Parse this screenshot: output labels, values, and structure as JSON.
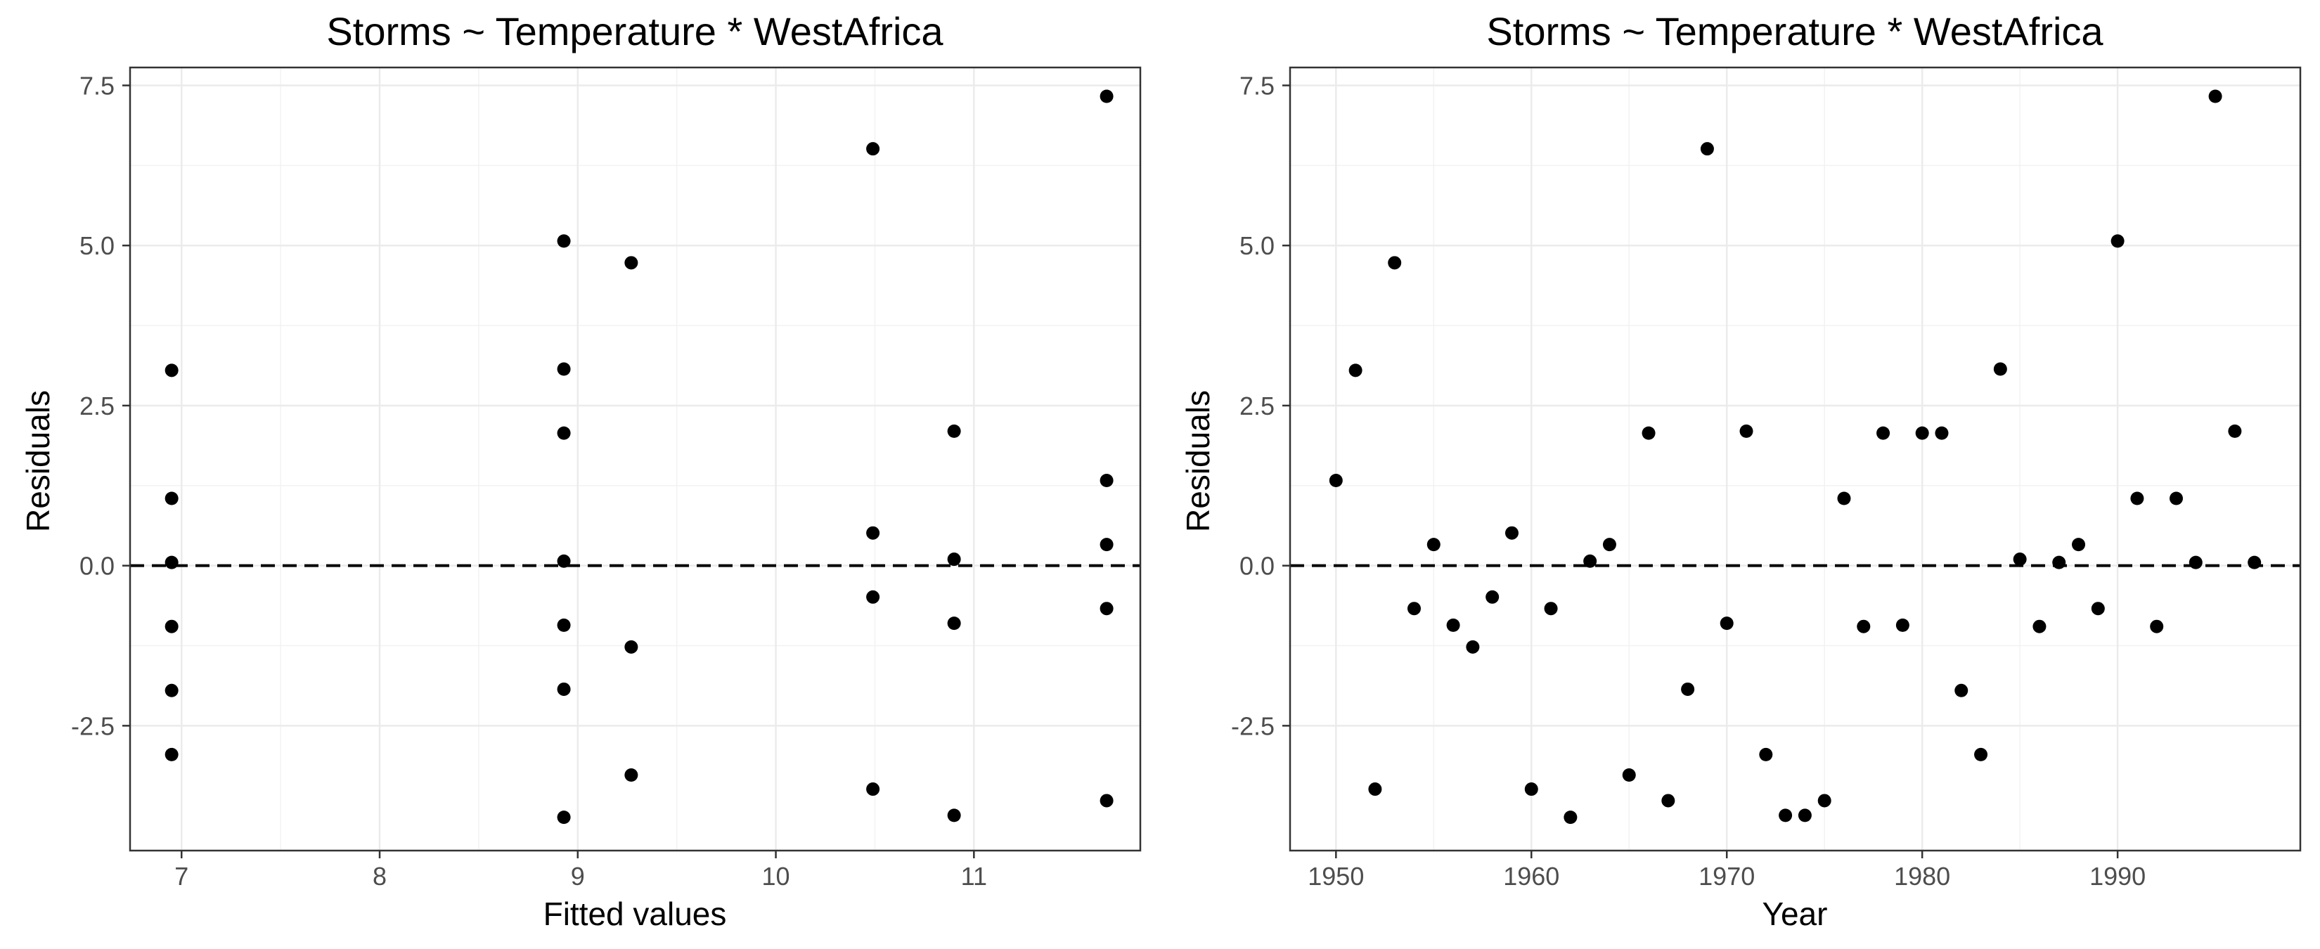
{
  "chart_data": [
    {
      "type": "scatter",
      "title": "Storms ~ Temperature * WestAfrica",
      "xlabel": "Fitted values",
      "ylabel": "Residuals",
      "xlim": [
        6.74,
        11.84
      ],
      "ylim": [
        -4.45,
        7.78
      ],
      "x_ticks": [
        7,
        8,
        9,
        10,
        11
      ],
      "x_tick_labels": [
        "7",
        "8",
        "9",
        "10",
        "11"
      ],
      "y_ticks": [
        -2.5,
        0,
        2.5,
        5,
        7.5
      ],
      "y_tick_labels": [
        "-2.5",
        "0.0",
        "2.5",
        "5.0",
        "7.5"
      ],
      "reference_line": 0,
      "grid": true,
      "x": [
        6.95,
        6.95,
        6.95,
        6.95,
        6.95,
        6.95,
        8.93,
        8.93,
        8.93,
        8.93,
        8.93,
        8.93,
        8.93,
        9.27,
        9.27,
        9.27,
        10.49,
        10.49,
        10.49,
        10.49,
        10.9,
        10.9,
        10.9,
        10.9,
        11.67,
        11.67,
        11.67,
        11.67,
        11.67
      ],
      "y": [
        3.05,
        1.05,
        0.05,
        -0.95,
        -1.95,
        -2.95,
        5.07,
        3.07,
        2.07,
        0.07,
        -0.93,
        -1.93,
        -3.93,
        4.73,
        -1.27,
        -3.27,
        6.51,
        0.51,
        -0.49,
        -3.49,
        2.1,
        0.1,
        -0.9,
        -3.9,
        7.33,
        1.33,
        0.33,
        -0.67,
        -3.67
      ]
    },
    {
      "type": "scatter",
      "title": "Storms ~ Temperature * WestAfrica",
      "xlabel": "Year",
      "ylabel": "Residuals",
      "xlim": [
        1947.65,
        1999.35
      ],
      "ylim": [
        -4.45,
        7.78
      ],
      "x_ticks": [
        1950,
        1960,
        1970,
        1980,
        1990
      ],
      "x_tick_labels": [
        "1950",
        "1960",
        "1970",
        "1980",
        "1990"
      ],
      "y_ticks": [
        -2.5,
        0,
        2.5,
        5,
        7.5
      ],
      "y_tick_labels": [
        "-2.5",
        "0.0",
        "2.5",
        "5.0",
        "7.5"
      ],
      "reference_line": 0,
      "grid": true,
      "x": [
        1950,
        1951,
        1952,
        1953,
        1954,
        1955,
        1956,
        1957,
        1958,
        1959,
        1960,
        1961,
        1962,
        1963,
        1964,
        1965,
        1966,
        1967,
        1968,
        1969,
        1970,
        1971,
        1972,
        1973,
        1974,
        1975,
        1976,
        1977,
        1978,
        1979,
        1980,
        1981,
        1982,
        1983,
        1984,
        1985,
        1986,
        1987,
        1988,
        1989,
        1990,
        1991,
        1992,
        1993,
        1994,
        1995,
        1996,
        1997
      ],
      "y": [
        1.33,
        3.05,
        -3.49,
        4.73,
        -0.67,
        0.33,
        -0.93,
        -1.27,
        -0.49,
        0.51,
        -3.49,
        -0.67,
        -3.93,
        0.07,
        0.33,
        -3.27,
        2.07,
        -3.67,
        -1.93,
        6.51,
        -0.9,
        2.1,
        -2.95,
        -3.9,
        -3.9,
        -3.67,
        1.05,
        -0.95,
        2.07,
        -0.93,
        2.07,
        2.07,
        -1.95,
        -2.95,
        3.07,
        0.1,
        -0.95,
        0.05,
        0.33,
        -0.67,
        5.07,
        1.05,
        -0.95,
        1.05,
        0.05,
        7.33,
        2.1,
        0.05
      ]
    }
  ]
}
